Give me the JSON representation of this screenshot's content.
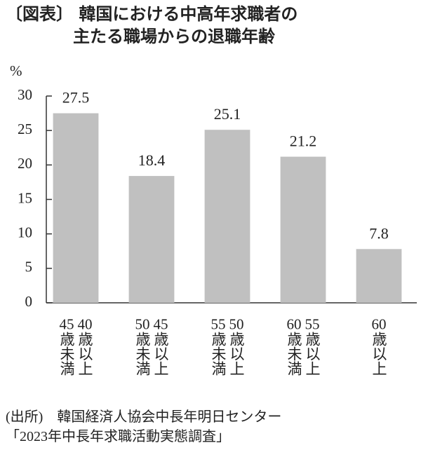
{
  "chart_data": {
    "type": "bar",
    "title": "〔図表〕 韓国における中高年求職者の\n　　　　主たる職場からの退職年齢",
    "ylabel": "%",
    "categories": [
      "40歳以上45歳未満",
      "45歳以上50歳未満",
      "50歳以上55歳未満",
      "55歳以上60歳未満",
      "60歳以上"
    ],
    "values": [
      27.5,
      18.4,
      25.1,
      21.2,
      7.8
    ],
    "color": "#c0c0c0",
    "ylim": [
      0,
      30
    ],
    "yticks": [
      0,
      5,
      10,
      15,
      20,
      25,
      30
    ],
    "source": [
      "(出所)　韓国経済人協会中長年明日センター",
      "「2023年中長年求職活動実態調査」"
    ]
  }
}
